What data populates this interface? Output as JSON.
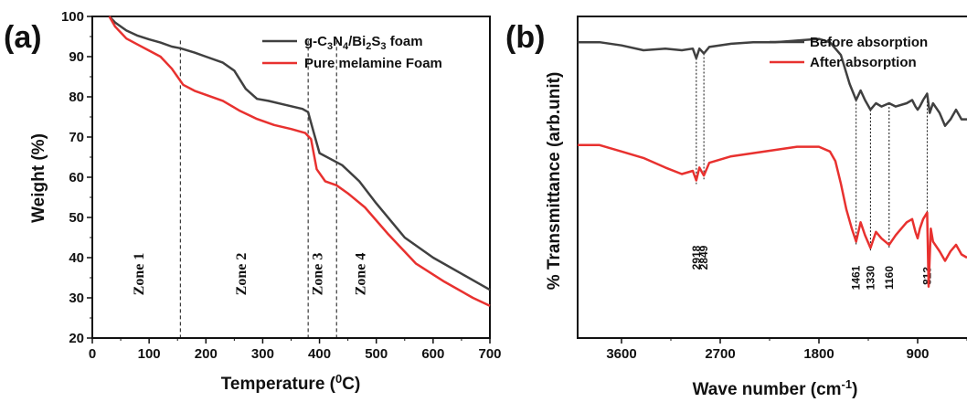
{
  "chart_data": [
    {
      "type": "line",
      "panel_label": "(a)",
      "xlabel": "Temperature (",
      "xlabel_sup": "0",
      "xlabel_end": "C)",
      "ylabel": "Weight (%)",
      "xlim": [
        0,
        700
      ],
      "ylim": [
        20,
        100
      ],
      "xticks": [
        0,
        100,
        200,
        300,
        400,
        500,
        600,
        700
      ],
      "yticks": [
        20,
        30,
        40,
        50,
        60,
        70,
        80,
        90,
        100
      ],
      "legend_position": "top-right",
      "series": [
        {
          "name_parts": [
            "g-C",
            "3",
            "N",
            "4",
            "/Bi",
            "2",
            "S",
            "3",
            " foam"
          ],
          "color": "#404040",
          "x": [
            30,
            40,
            60,
            80,
            100,
            120,
            140,
            155,
            180,
            200,
            230,
            250,
            270,
            290,
            310,
            340,
            370,
            380,
            390,
            400,
            420,
            440,
            470,
            500,
            550,
            600,
            650,
            700
          ],
          "y": [
            100,
            98.5,
            96.5,
            95.2,
            94.3,
            93.5,
            92.5,
            92.1,
            91,
            90,
            88.5,
            86.5,
            82,
            79.5,
            79,
            78,
            77,
            76.2,
            71,
            66,
            64.5,
            63,
            59,
            53.5,
            45,
            40,
            36,
            32
          ]
        },
        {
          "name": "Pure melamine Foam",
          "color": "#e8312f",
          "x": [
            30,
            40,
            60,
            80,
            100,
            120,
            140,
            150,
            160,
            180,
            200,
            230,
            260,
            290,
            320,
            350,
            375,
            385,
            395,
            410,
            430,
            450,
            480,
            520,
            570,
            620,
            670,
            700
          ],
          "y": [
            100,
            97.5,
            94.5,
            93,
            91.5,
            90,
            87,
            85,
            83,
            81.5,
            80.5,
            79,
            76.5,
            74.5,
            73,
            72,
            71,
            69.5,
            62,
            59,
            58,
            56,
            52.5,
            46,
            38.5,
            34,
            30,
            28
          ]
        }
      ],
      "annotations": {
        "zone_lines_x": [
          155,
          380,
          430
        ],
        "zones": [
          {
            "label": "Zone 1",
            "x": 90
          },
          {
            "label": "Zone 2",
            "x": 270
          },
          {
            "label": "Zone 3",
            "x": 405
          },
          {
            "label": "Zone 4",
            "x": 480
          }
        ]
      }
    },
    {
      "type": "line",
      "panel_label": "(b)",
      "xlabel": "Wave number (cm",
      "xlabel_sup": "-1",
      "xlabel_end": ")",
      "ylabel": "% Transmittance (arb.unit)",
      "xlim": [
        4000,
        450
      ],
      "xticks": [
        3600,
        2700,
        1800,
        900
      ],
      "legend_position": "top-right",
      "series": [
        {
          "name": "Before absorption",
          "color": "#404040",
          "x": [
            4000,
            3800,
            3600,
            3400,
            3200,
            3050,
            2950,
            2918,
            2890,
            2849,
            2800,
            2600,
            2400,
            2200,
            2000,
            1800,
            1700,
            1600,
            1520,
            1461,
            1420,
            1380,
            1330,
            1280,
            1230,
            1160,
            1100,
            1000,
            950,
            920,
            900,
            880,
            850,
            813,
            790,
            760,
            700,
            650,
            600,
            550,
            500,
            450
          ],
          "y": [
            0.92,
            0.92,
            0.91,
            0.895,
            0.9,
            0.895,
            0.9,
            0.87,
            0.9,
            0.885,
            0.905,
            0.915,
            0.92,
            0.92,
            0.925,
            0.93,
            0.92,
            0.88,
            0.79,
            0.74,
            0.77,
            0.74,
            0.71,
            0.73,
            0.72,
            0.73,
            0.72,
            0.73,
            0.74,
            0.72,
            0.71,
            0.72,
            0.74,
            0.76,
            0.7,
            0.73,
            0.7,
            0.66,
            0.68,
            0.71,
            0.68,
            0.68
          ]
        },
        {
          "name": "After absorption",
          "color": "#e8312f",
          "x": [
            4000,
            3800,
            3600,
            3400,
            3200,
            3050,
            2950,
            2918,
            2890,
            2849,
            2800,
            2600,
            2400,
            2200,
            2000,
            1800,
            1700,
            1650,
            1600,
            1550,
            1500,
            1461,
            1420,
            1380,
            1330,
            1280,
            1230,
            1160,
            1100,
            1000,
            950,
            920,
            900,
            880,
            850,
            813,
            800,
            780,
            760,
            700,
            650,
            600,
            550,
            500,
            450
          ],
          "y": [
            0.6,
            0.6,
            0.58,
            0.56,
            0.53,
            0.51,
            0.52,
            0.49,
            0.53,
            0.505,
            0.545,
            0.565,
            0.575,
            0.585,
            0.595,
            0.595,
            0.58,
            0.55,
            0.48,
            0.4,
            0.34,
            0.3,
            0.36,
            0.32,
            0.28,
            0.33,
            0.31,
            0.29,
            0.32,
            0.36,
            0.37,
            0.33,
            0.31,
            0.34,
            0.37,
            0.39,
            0.16,
            0.34,
            0.3,
            0.27,
            0.24,
            0.27,
            0.29,
            0.26,
            0.25
          ]
        }
      ],
      "peaks": [
        {
          "label": "2918",
          "x": 2918
        },
        {
          "label": "2849",
          "x": 2849
        },
        {
          "label": "1461",
          "x": 1461
        },
        {
          "label": "1330",
          "x": 1330
        },
        {
          "label": "1160",
          "x": 1160
        },
        {
          "label": "813",
          "x": 813
        }
      ]
    }
  ]
}
